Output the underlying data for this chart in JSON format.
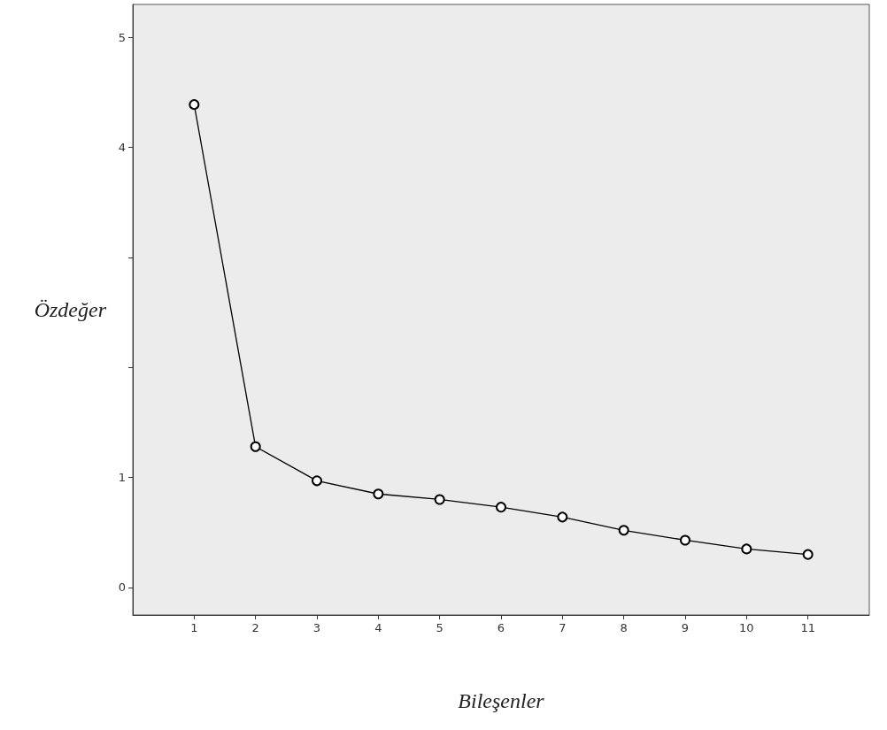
{
  "chart_data": {
    "type": "line",
    "xlabel": "Bileşenler",
    "ylabel": "Özdeğer",
    "x": [
      1,
      2,
      3,
      4,
      5,
      6,
      7,
      8,
      9,
      10,
      11
    ],
    "series": [
      {
        "color": "#000000",
        "values": [
          4.39,
          1.28,
          0.97,
          0.85,
          0.8,
          0.73,
          0.64,
          0.52,
          0.43,
          0.35,
          0.3
        ]
      }
    ],
    "xlim": [
      0,
      12
    ],
    "xticks": [
      1,
      2,
      3,
      4,
      5,
      6,
      7,
      8,
      9,
      10,
      11
    ],
    "ylim": [
      -0.25,
      5.3
    ],
    "yticks": [
      0,
      1,
      {
        "value": 2,
        "label": null
      },
      {
        "value": 3,
        "label": null
      },
      4,
      5
    ],
    "marker": "circle",
    "line_style": "solid",
    "grid": false
  }
}
